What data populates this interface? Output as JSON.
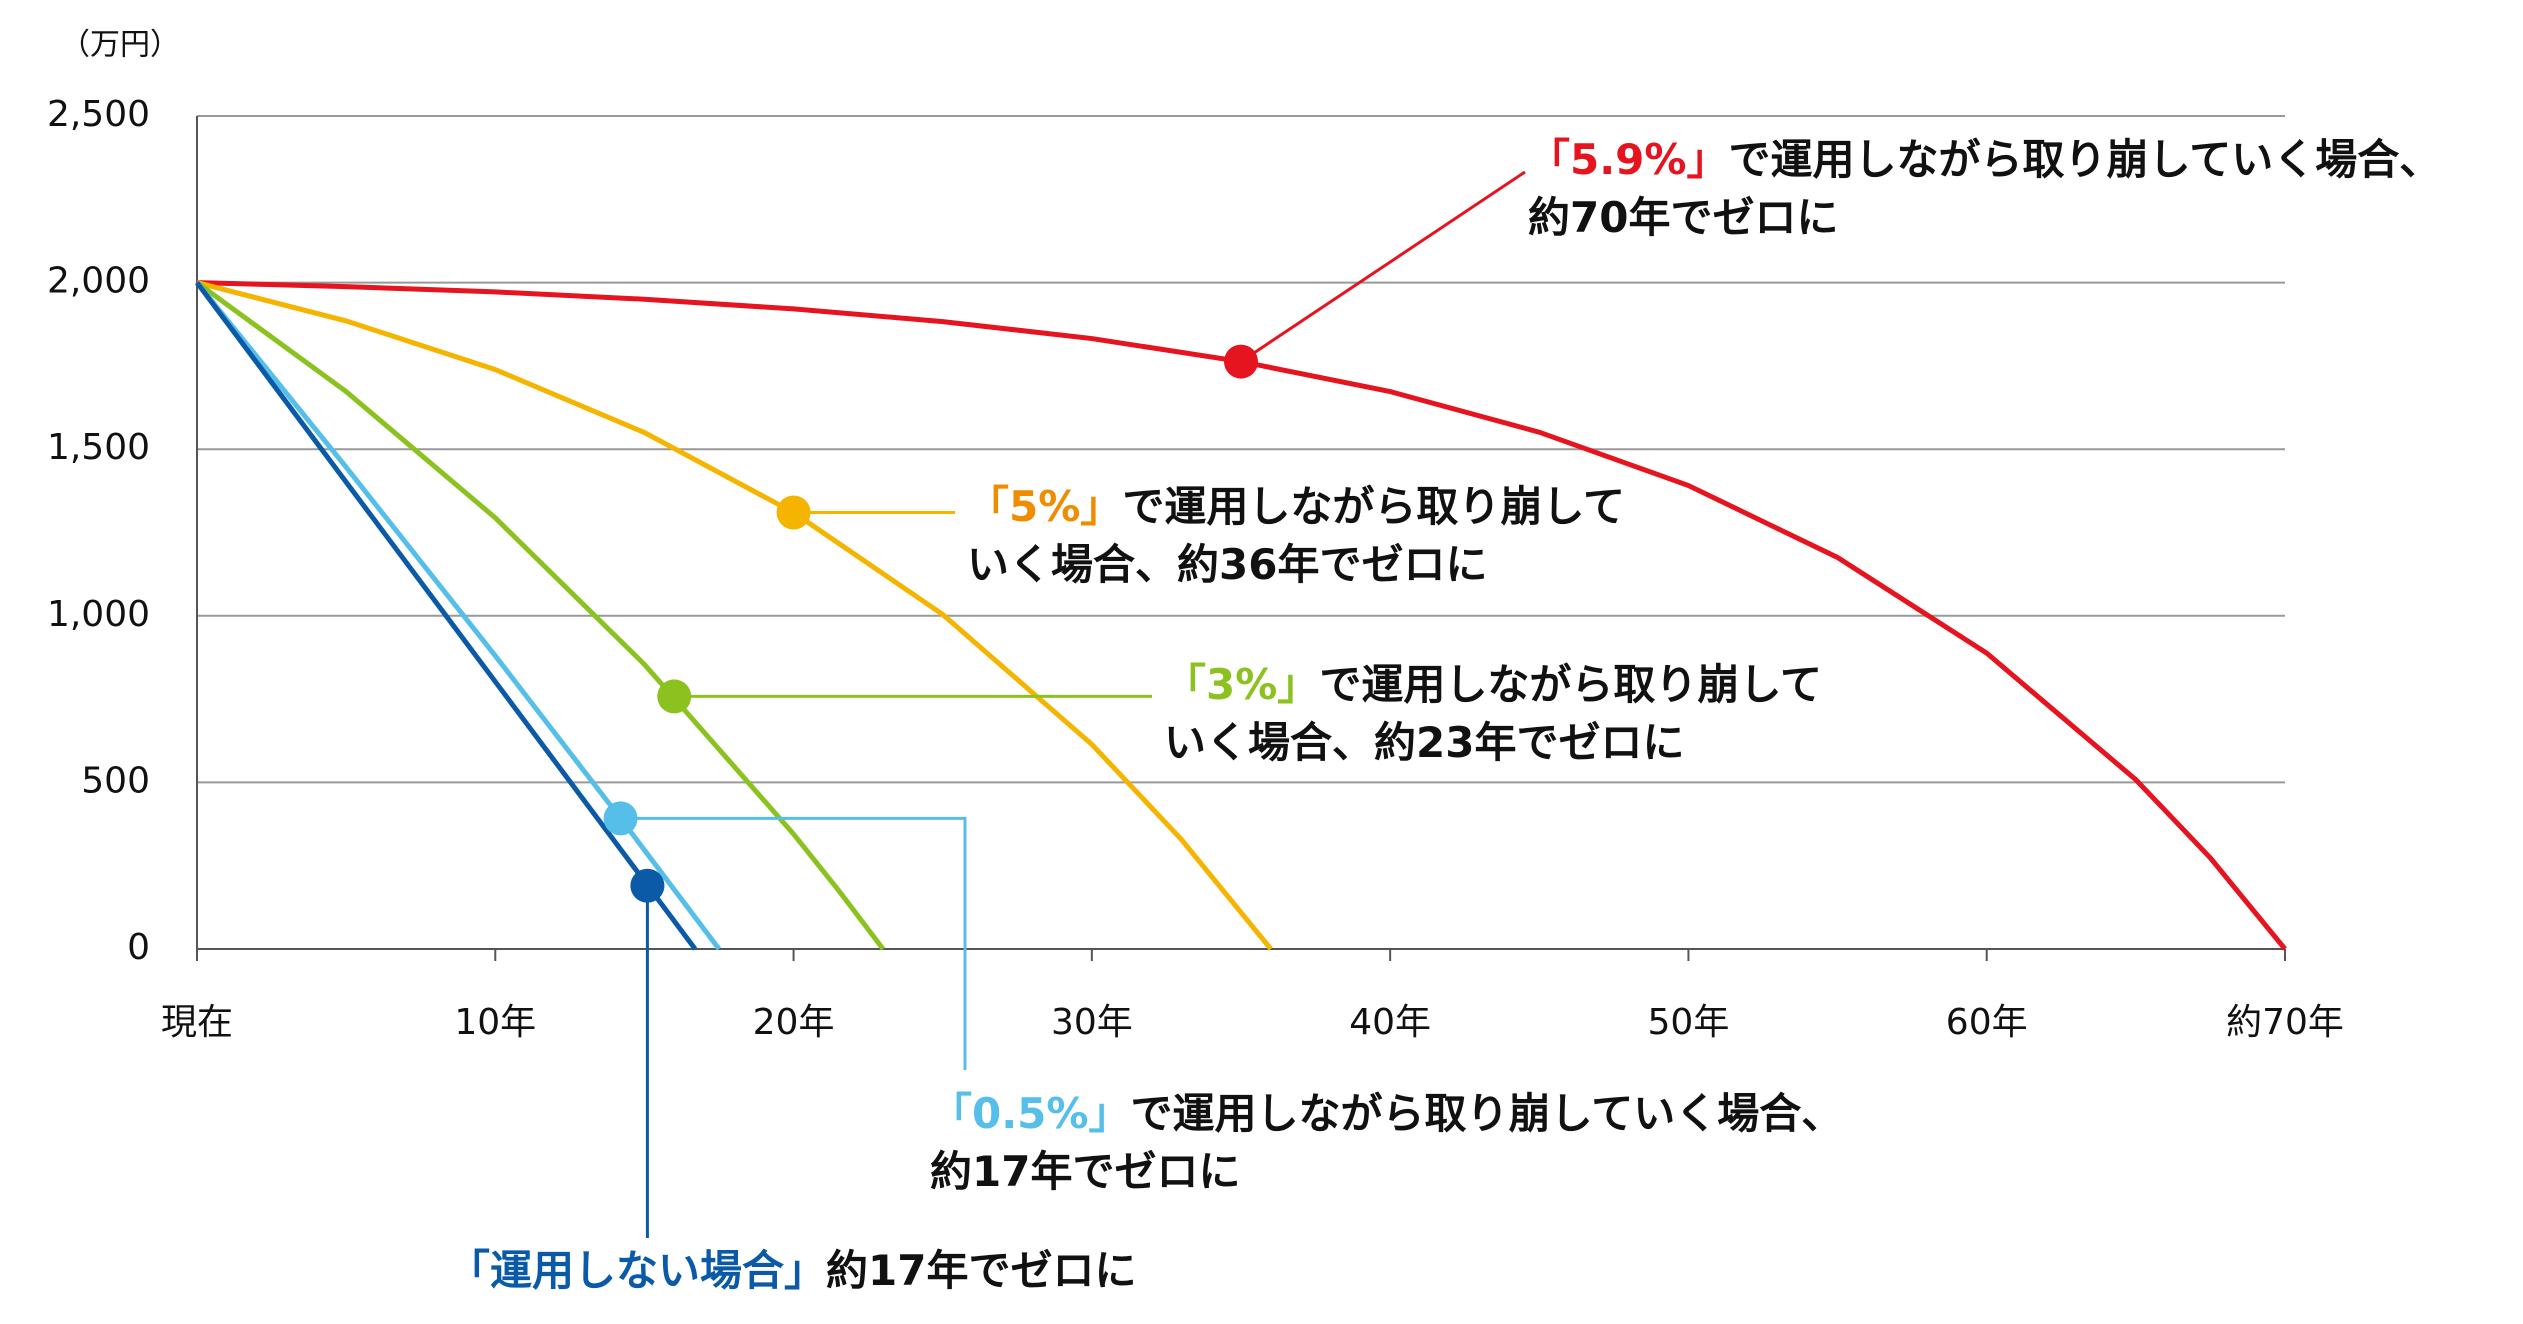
{
  "chart_data": {
    "type": "line",
    "y_unit": "（万円）",
    "xlim": [
      0,
      70
    ],
    "ylim": [
      0,
      2500
    ],
    "xticks": [
      {
        "value": 0,
        "label": "現在"
      },
      {
        "value": 10,
        "label": "10年"
      },
      {
        "value": 20,
        "label": "20年"
      },
      {
        "value": 30,
        "label": "30年"
      },
      {
        "value": 40,
        "label": "40年"
      },
      {
        "value": 50,
        "label": "50年"
      },
      {
        "value": 60,
        "label": "60年"
      },
      {
        "value": 70,
        "label": "約70年"
      }
    ],
    "yticks": [
      0,
      500,
      {
        "value": 1000,
        "label": "1,000"
      },
      {
        "value": 1500,
        "label": "1,500"
      },
      {
        "value": 2000,
        "label": "2,000"
      },
      {
        "value": 2500,
        "label": "2,500"
      }
    ],
    "grid": true,
    "series": [
      {
        "color": "#e5141f",
        "x": [
          0,
          5,
          10,
          15,
          20,
          25,
          30,
          35,
          40,
          45,
          50,
          55,
          60,
          65,
          67.5,
          70
        ],
        "values": [
          2000,
          1988,
          1972,
          1950,
          1921,
          1883,
          1832,
          1763,
          1673,
          1551,
          1391,
          1175,
          888,
          508,
          273,
          0
        ]
      },
      {
        "color": "#f5b400",
        "x": [
          0,
          5,
          10,
          15,
          20,
          25,
          30,
          33,
          36
        ],
        "values": [
          2000,
          1885,
          1739,
          1550,
          1310,
          1004,
          614,
          329,
          0
        ]
      },
      {
        "color": "#8cc21f",
        "x": [
          0,
          5,
          10,
          15,
          20,
          21.5,
          23
        ],
        "values": [
          2000,
          1673,
          1294,
          854,
          345,
          177,
          0
        ]
      },
      {
        "color": "#55bee9",
        "x": [
          0,
          5,
          10,
          14.2,
          17.5
        ],
        "values": [
          2000,
          1446,
          880,
          392,
          0
        ]
      },
      {
        "color": "#0b5aa8",
        "x": [
          0,
          16.7
        ],
        "values": [
          2000,
          0
        ]
      }
    ],
    "annotations": [
      {
        "x": 35,
        "y": 1763,
        "color": "#e5141f",
        "highlight": "「5.9%」",
        "lines": [
          "で運用しながら取り崩していく場合、",
          "約70年でゼロに"
        ]
      },
      {
        "x": 20,
        "y": 1310,
        "color": "#f08c00",
        "highlight": "「5%」",
        "lines": [
          "で運用しながら取り崩して",
          "いく場合、約36年でゼロに"
        ]
      },
      {
        "x": 16,
        "y": 758,
        "color": "#8cc21f",
        "highlight": "「3%」",
        "lines": [
          "で運用しながら取り崩して",
          "いく場合、約23年でゼロに"
        ]
      },
      {
        "x": 14.2,
        "y": 392,
        "color": "#55bee9",
        "highlight": "「0.5%」",
        "lines": [
          "で運用しながら取り崩していく場合、",
          "約17年でゼロに"
        ]
      },
      {
        "x": 15.1,
        "y": 190,
        "color": "#0b5aa8",
        "highlight": "「運用しない場合」",
        "lines": [
          "約17年でゼロに"
        ]
      }
    ]
  }
}
